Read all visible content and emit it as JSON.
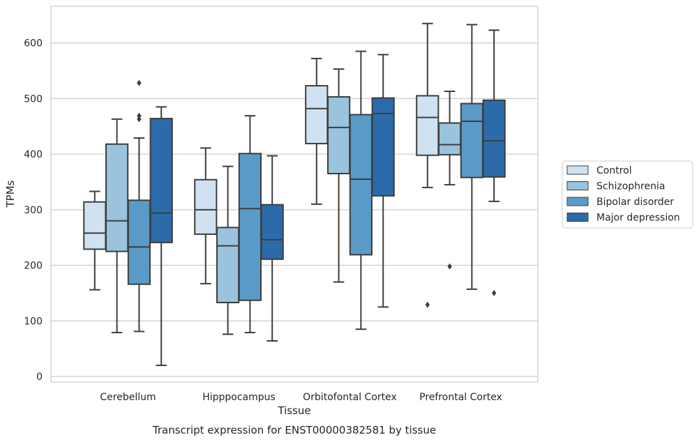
{
  "chart_data": {
    "type": "box",
    "title": "",
    "caption": "Transcript expression for ENST00000382581 by tissue",
    "xlabel": "Tissue",
    "ylabel": "TPMs",
    "ylim": [
      -10,
      666
    ],
    "yticks": [
      0,
      100,
      200,
      300,
      400,
      500,
      600
    ],
    "grid": true,
    "legend_position": "right",
    "categories": [
      "Cerebellum",
      "Hipppocampus",
      "Orbitofontal Cortex",
      "Prefrontal Cortex"
    ],
    "series": [
      {
        "name": "Control",
        "color": "#d0e1f1",
        "boxes": [
          {
            "whislo": 156,
            "q1": 229,
            "med": 258,
            "q3": 314,
            "whishi": 333,
            "fliers": []
          },
          {
            "whislo": 167,
            "q1": 256,
            "med": 300,
            "q3": 354,
            "whishi": 411,
            "fliers": []
          },
          {
            "whislo": 310,
            "q1": 419,
            "med": 482,
            "q3": 523,
            "whishi": 572,
            "fliers": []
          },
          {
            "whislo": 340,
            "q1": 398,
            "med": 466,
            "q3": 505,
            "whishi": 635,
            "fliers": [
              129
            ]
          }
        ]
      },
      {
        "name": "Schizophrenia",
        "color": "#9ac3dd",
        "boxes": [
          {
            "whislo": 79,
            "q1": 225,
            "med": 280,
            "q3": 418,
            "whishi": 463,
            "fliers": []
          },
          {
            "whislo": 76,
            "q1": 133,
            "med": 235,
            "q3": 268,
            "whishi": 378,
            "fliers": []
          },
          {
            "whislo": 170,
            "q1": 365,
            "med": 448,
            "q3": 503,
            "whishi": 553,
            "fliers": []
          },
          {
            "whislo": 345,
            "q1": 399,
            "med": 417,
            "q3": 456,
            "whishi": 513,
            "fliers": [
              198
            ]
          }
        ]
      },
      {
        "name": "Bipolar disorder",
        "color": "#5a9ac6",
        "boxes": [
          {
            "whislo": 81,
            "q1": 166,
            "med": 233,
            "q3": 317,
            "whishi": 429,
            "fliers": [
              463,
              469,
              528
            ]
          },
          {
            "whislo": 79,
            "q1": 137,
            "med": 302,
            "q3": 401,
            "whishi": 469,
            "fliers": []
          },
          {
            "whislo": 85,
            "q1": 219,
            "med": 355,
            "q3": 471,
            "whishi": 585,
            "fliers": []
          },
          {
            "whislo": 157,
            "q1": 358,
            "med": 459,
            "q3": 491,
            "whishi": 633,
            "fliers": []
          }
        ]
      },
      {
        "name": "Major depression",
        "color": "#2c6ba9",
        "boxes": [
          {
            "whislo": 20,
            "q1": 241,
            "med": 294,
            "q3": 464,
            "whishi": 485,
            "fliers": []
          },
          {
            "whislo": 64,
            "q1": 211,
            "med": 246,
            "q3": 309,
            "whishi": 397,
            "fliers": []
          },
          {
            "whislo": 125,
            "q1": 325,
            "med": 473,
            "q3": 501,
            "whishi": 579,
            "fliers": []
          },
          {
            "whislo": 315,
            "q1": 359,
            "med": 424,
            "q3": 497,
            "whishi": 623,
            "fliers": [
              150
            ]
          }
        ]
      }
    ]
  }
}
